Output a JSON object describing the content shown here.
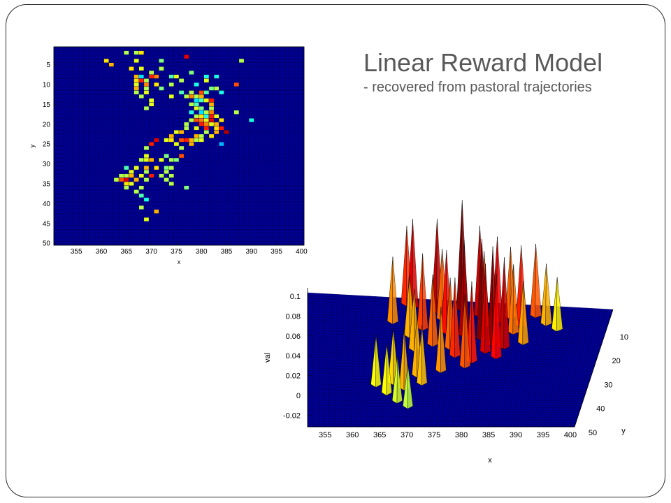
{
  "title": "Linear Reward Model",
  "subtitle": "- recovered from pastoral trajectories",
  "colors": {
    "background": "#00008f",
    "grid": "#000060",
    "frame": "#2a2a2a"
  },
  "chart_data": [
    {
      "type": "heatmap",
      "xlabel": "x",
      "ylabel": "y",
      "xlim": [
        351,
        400
      ],
      "ylim": [
        1,
        50
      ],
      "x_ticks": [
        "355",
        "360",
        "365",
        "370",
        "375",
        "380",
        "385",
        "390",
        "395",
        "400"
      ],
      "y_ticks": [
        "5",
        "10",
        "15",
        "20",
        "25",
        "30",
        "35",
        "40",
        "45",
        "50"
      ],
      "colormap": "jet",
      "cells": [
        [
          365,
          2,
          0.55
        ],
        [
          367,
          2,
          0.55
        ],
        [
          368,
          2,
          0.65
        ],
        [
          377,
          3,
          0.9
        ],
        [
          361,
          4,
          0.65
        ],
        [
          362,
          5,
          0.7
        ],
        [
          367,
          4,
          0.6
        ],
        [
          372,
          4,
          0.5
        ],
        [
          388,
          4,
          0.55
        ],
        [
          366,
          6,
          0.65
        ],
        [
          368,
          6,
          0.6
        ],
        [
          372,
          6,
          0.55
        ],
        [
          370,
          7,
          0.55
        ],
        [
          378,
          7,
          0.5
        ],
        [
          367,
          8,
          0.7
        ],
        [
          368,
          8,
          0.35
        ],
        [
          370,
          8,
          0.85
        ],
        [
          371,
          8,
          0.75
        ],
        [
          374,
          8,
          0.45
        ],
        [
          381,
          8,
          0.4
        ],
        [
          383,
          8,
          0.4
        ],
        [
          375,
          8,
          0.6
        ],
        [
          367,
          9,
          0.65
        ],
        [
          368,
          9,
          0.85
        ],
        [
          369,
          9,
          0.55
        ],
        [
          376,
          9,
          0.55
        ],
        [
          381,
          9,
          0.6
        ],
        [
          367,
          10,
          0.6
        ],
        [
          369,
          10,
          0.75
        ],
        [
          371,
          10,
          0.65
        ],
        [
          374,
          10,
          0.55
        ],
        [
          379,
          10,
          0.4
        ],
        [
          387,
          10,
          0.8
        ],
        [
          367,
          11,
          0.7
        ],
        [
          369,
          11,
          0.55
        ],
        [
          372,
          11,
          0.5
        ],
        [
          382,
          11,
          0.5
        ],
        [
          383,
          11,
          0.55
        ],
        [
          367,
          12,
          0.55
        ],
        [
          369,
          12,
          0.6
        ],
        [
          376,
          12,
          0.45
        ],
        [
          378,
          12,
          0.55
        ],
        [
          380,
          12,
          0.8
        ],
        [
          381,
          12,
          0.45
        ],
        [
          384,
          12,
          0.4
        ],
        [
          368,
          13,
          0.55
        ],
        [
          374,
          13,
          0.6
        ],
        [
          377,
          13,
          0.55
        ],
        [
          378,
          13,
          0.75
        ],
        [
          379,
          13,
          0.55
        ],
        [
          380,
          13,
          0.7
        ],
        [
          370,
          14,
          0.6
        ],
        [
          379,
          14,
          0.35
        ],
        [
          380,
          14,
          0.45
        ],
        [
          381,
          14,
          0.6
        ],
        [
          382,
          14,
          0.85
        ],
        [
          370,
          15,
          0.6
        ],
        [
          378,
          15,
          0.55
        ],
        [
          379,
          15,
          0.45
        ],
        [
          382,
          15,
          0.7
        ],
        [
          369,
          16,
          0.55
        ],
        [
          379,
          16,
          0.6
        ],
        [
          380,
          16,
          0.5
        ],
        [
          382,
          16,
          0.55
        ],
        [
          378,
          17,
          0.4
        ],
        [
          380,
          17,
          0.35
        ],
        [
          381,
          17,
          0.55
        ],
        [
          382,
          17,
          0.75
        ],
        [
          387,
          17,
          0.55
        ],
        [
          379,
          18,
          0.55
        ],
        [
          380,
          18,
          0.65
        ],
        [
          381,
          18,
          0.4
        ],
        [
          382,
          18,
          0.85
        ],
        [
          383,
          18,
          0.6
        ],
        [
          378,
          19,
          0.55
        ],
        [
          379,
          19,
          0.8
        ],
        [
          380,
          19,
          0.75
        ],
        [
          381,
          19,
          0.6
        ],
        [
          382,
          19,
          0.9
        ],
        [
          384,
          19,
          0.65
        ],
        [
          390,
          19,
          0.4
        ],
        [
          377,
          20,
          0.55
        ],
        [
          380,
          20,
          0.85
        ],
        [
          381,
          20,
          0.75
        ],
        [
          382,
          20,
          0.6
        ],
        [
          383,
          20,
          0.7
        ],
        [
          377,
          21,
          0.55
        ],
        [
          379,
          21,
          0.6
        ],
        [
          381,
          21,
          0.85
        ],
        [
          383,
          21,
          0.65
        ],
        [
          384,
          21,
          0.85
        ],
        [
          375,
          22,
          0.6
        ],
        [
          376,
          22,
          0.7
        ],
        [
          381,
          22,
          0.55
        ],
        [
          383,
          22,
          0.7
        ],
        [
          385,
          22,
          0.95
        ],
        [
          374,
          23,
          0.7
        ],
        [
          379,
          23,
          0.7
        ],
        [
          380,
          23,
          0.55
        ],
        [
          382,
          23,
          0.65
        ],
        [
          371,
          24,
          0.9
        ],
        [
          373,
          24,
          0.6
        ],
        [
          374,
          24,
          0.65
        ],
        [
          376,
          24,
          0.8
        ],
        [
          377,
          24,
          0.85
        ],
        [
          378,
          24,
          0.7
        ],
        [
          379,
          24,
          0.55
        ],
        [
          380,
          24,
          0.6
        ],
        [
          370,
          25,
          0.85
        ],
        [
          375,
          25,
          0.6
        ],
        [
          378,
          25,
          0.7
        ],
        [
          384,
          25,
          0.3
        ],
        [
          369,
          26,
          0.55
        ],
        [
          376,
          26,
          0.55
        ],
        [
          369,
          28,
          0.6
        ],
        [
          373,
          28,
          0.5
        ],
        [
          376,
          28,
          0.8
        ],
        [
          368,
          29,
          0.55
        ],
        [
          369,
          29,
          0.6
        ],
        [
          370,
          29,
          0.7
        ],
        [
          372,
          29,
          0.6
        ],
        [
          374,
          29,
          0.55
        ],
        [
          375,
          29,
          0.5
        ],
        [
          365,
          31,
          0.45
        ],
        [
          367,
          31,
          0.6
        ],
        [
          369,
          31,
          0.7
        ],
        [
          371,
          31,
          0.65
        ],
        [
          373,
          31,
          0.5
        ],
        [
          374,
          31,
          0.55
        ],
        [
          366,
          32,
          0.6
        ],
        [
          369,
          32,
          0.55
        ],
        [
          373,
          32,
          0.55
        ],
        [
          364,
          33,
          0.55
        ],
        [
          365,
          33,
          0.55
        ],
        [
          366,
          33,
          0.7
        ],
        [
          368,
          33,
          0.6
        ],
        [
          370,
          33,
          0.85
        ],
        [
          372,
          33,
          0.55
        ],
        [
          374,
          33,
          0.55
        ],
        [
          363,
          34,
          0.55
        ],
        [
          364,
          34,
          0.8
        ],
        [
          365,
          34,
          0.9
        ],
        [
          367,
          34,
          0.7
        ],
        [
          369,
          34,
          0.55
        ],
        [
          373,
          34,
          0.55
        ],
        [
          365,
          35,
          0.65
        ],
        [
          366,
          35,
          0.6
        ],
        [
          374,
          35,
          0.55
        ],
        [
          365,
          36,
          0.55
        ],
        [
          368,
          36,
          0.55
        ],
        [
          377,
          36,
          0.5
        ],
        [
          367,
          37,
          0.55
        ],
        [
          368,
          38,
          0.45
        ],
        [
          369,
          39,
          0.4
        ],
        [
          368,
          41,
          0.55
        ],
        [
          371,
          42,
          0.7
        ],
        [
          369,
          44,
          0.6
        ]
      ]
    },
    {
      "type": "surface",
      "xlabel": "x",
      "ylabel": "y",
      "zlabel": "val",
      "xlim": [
        351,
        400
      ],
      "ylim": [
        1,
        50
      ],
      "zlim": [
        -0.03,
        0.1
      ],
      "x_ticks": [
        "355",
        "360",
        "365",
        "370",
        "375",
        "380",
        "385",
        "390",
        "395",
        "400"
      ],
      "y_ticks": [
        "10",
        "20",
        "30",
        "40",
        "50"
      ],
      "z_ticks": [
        "0.1",
        "0.08",
        "0.06",
        "0.04",
        "0.02",
        "0",
        "-0.02"
      ],
      "colormap": "jet",
      "peaks": [
        [
          367,
          3,
          0.078
        ],
        [
          368,
          4,
          0.088
        ],
        [
          372,
          5,
          0.092
        ],
        [
          376,
          4,
          0.11
        ],
        [
          379,
          6,
          0.09
        ],
        [
          382,
          8,
          0.085
        ],
        [
          384,
          6,
          0.07
        ],
        [
          386,
          9,
          0.08
        ],
        [
          388,
          5,
          0.072
        ],
        [
          390,
          8,
          0.06
        ],
        [
          392,
          10,
          0.052
        ],
        [
          370,
          12,
          0.075
        ],
        [
          374,
          13,
          0.082
        ],
        [
          377,
          14,
          0.095
        ],
        [
          380,
          15,
          0.1
        ],
        [
          382,
          17,
          0.098
        ],
        [
          384,
          18,
          0.09
        ],
        [
          381,
          20,
          0.088
        ],
        [
          383,
          22,
          0.083
        ],
        [
          379,
          24,
          0.08
        ],
        [
          365,
          10,
          0.065
        ],
        [
          368,
          15,
          0.06
        ],
        [
          372,
          18,
          0.07
        ],
        [
          376,
          22,
          0.078
        ],
        [
          378,
          26,
          0.072
        ],
        [
          374,
          28,
          0.064
        ],
        [
          370,
          30,
          0.06
        ],
        [
          366,
          33,
          0.055
        ],
        [
          368,
          35,
          0.06
        ],
        [
          365,
          37,
          0.05
        ],
        [
          367,
          40,
          0.045
        ],
        [
          369,
          42,
          0.042
        ],
        [
          363,
          34,
          0.05
        ],
        [
          371,
          33,
          0.058
        ],
        [
          375,
          19,
          0.07
        ],
        [
          385,
          12,
          0.068
        ],
        [
          387,
          16,
          0.062
        ],
        [
          380,
          10,
          0.075
        ],
        [
          373,
          8,
          0.07
        ],
        [
          369,
          20,
          0.06
        ]
      ]
    }
  ]
}
